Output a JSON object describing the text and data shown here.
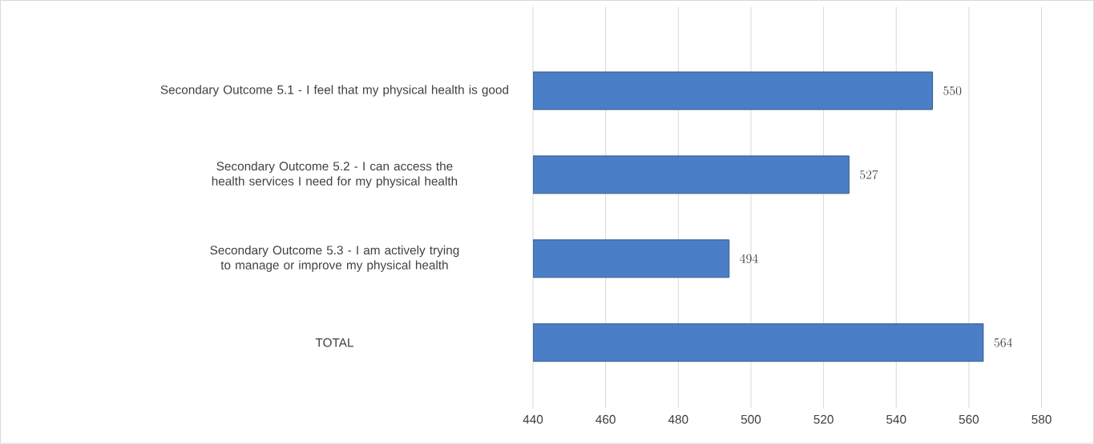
{
  "chart_data": {
    "type": "bar",
    "orientation": "horizontal",
    "categories": [
      "Secondary Outcome 5.1 - I feel that my physical health is good",
      "Secondary Outcome 5.2 - I can access the health services I need for my physical health",
      "Secondary Outcome 5.3 - I am actively trying to manage or improve my physical health",
      "TOTAL"
    ],
    "values": [
      550,
      527,
      494,
      564
    ],
    "color": "#4a7ec6",
    "xlim": [
      440,
      580
    ],
    "xticks": [
      440,
      460,
      480,
      500,
      520,
      540,
      560,
      580
    ],
    "grid": "x",
    "data_labels": true
  }
}
